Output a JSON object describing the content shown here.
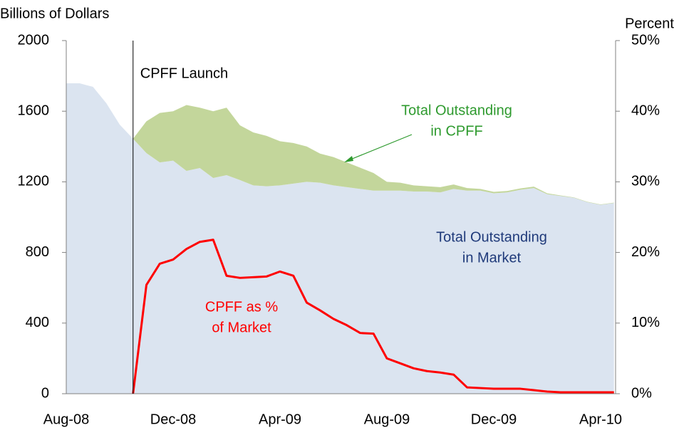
{
  "chart_data": {
    "type": "area",
    "stacked": true,
    "y_label": "Billions of Dollars",
    "y2_label": "Percent",
    "categories": [
      "Aug-08",
      null,
      null,
      null,
      null,
      null,
      null,
      null,
      "Dec-08",
      null,
      null,
      null,
      null,
      null,
      null,
      null,
      "Apr-09",
      null,
      null,
      null,
      null,
      null,
      null,
      null,
      "Aug-09",
      null,
      null,
      null,
      null,
      null,
      null,
      null,
      "Dec-09",
      null,
      null,
      null,
      null,
      null,
      null,
      null,
      "Apr-10",
      null
    ],
    "ylim": [
      0,
      2000
    ],
    "yticks": [
      0,
      400,
      800,
      1200,
      1600,
      2000
    ],
    "y2lim": [
      0,
      50
    ],
    "y2ticks": [
      {
        "value": 0,
        "label": "0%"
      },
      {
        "value": 10,
        "label": "10%"
      },
      {
        "value": 20,
        "label": "20%"
      },
      {
        "value": 30,
        "label": "30%"
      },
      {
        "value": 40,
        "label": "40%"
      },
      {
        "value": 50,
        "label": "50%"
      }
    ],
    "annotation": "CPFF Launch",
    "series": [
      {
        "name": [
          "Total Outstanding",
          "in Market"
        ],
        "color": "#dbe4f0",
        "label_color": "#1f3a7a",
        "values": [
          1758,
          1758,
          1738,
          1645,
          1524,
          1444,
          1363,
          1310,
          1320,
          1262,
          1278,
          1222,
          1238,
          1210,
          1180,
          1175,
          1180,
          1190,
          1200,
          1195,
          1180,
          1170,
          1160,
          1150,
          1150,
          1150,
          1145,
          1145,
          1140,
          1160,
          1150,
          1150,
          1135,
          1140,
          1155,
          1165,
          1130,
          1120,
          1110,
          1085,
          1070,
          1080
        ]
      },
      {
        "name": [
          "Total Outstanding",
          "in CPFF"
        ],
        "color": "#c3d69b",
        "label_color": "#2e9a2e",
        "values": [
          null,
          null,
          null,
          null,
          null,
          0,
          180,
          280,
          280,
          373,
          342,
          378,
          382,
          310,
          300,
          285,
          250,
          230,
          200,
          165,
          160,
          140,
          120,
          100,
          50,
          45,
          35,
          30,
          30,
          25,
          15,
          10,
          8,
          8,
          8,
          8,
          5,
          3,
          2,
          2,
          2,
          2
        ]
      },
      {
        "name": [
          "CPFF as %",
          "of Market"
        ],
        "color": "#ff0000",
        "label_color": "#ff0000",
        "type": "line",
        "axis": "y2",
        "values": [
          null,
          null,
          null,
          null,
          null,
          0,
          15.4,
          18.4,
          19,
          20.5,
          21.5,
          21.8,
          16.7,
          16.4,
          16.5,
          16.6,
          17.3,
          16.7,
          12.9,
          11.8,
          10.6,
          9.7,
          8.6,
          8.5,
          5.0,
          4.3,
          3.6,
          3.2,
          3.0,
          2.7,
          0.9,
          0.8,
          0.7,
          0.7,
          0.7,
          0.5,
          0.3,
          0.2,
          0.2,
          0.2,
          0.2,
          0.2
        ]
      }
    ]
  }
}
